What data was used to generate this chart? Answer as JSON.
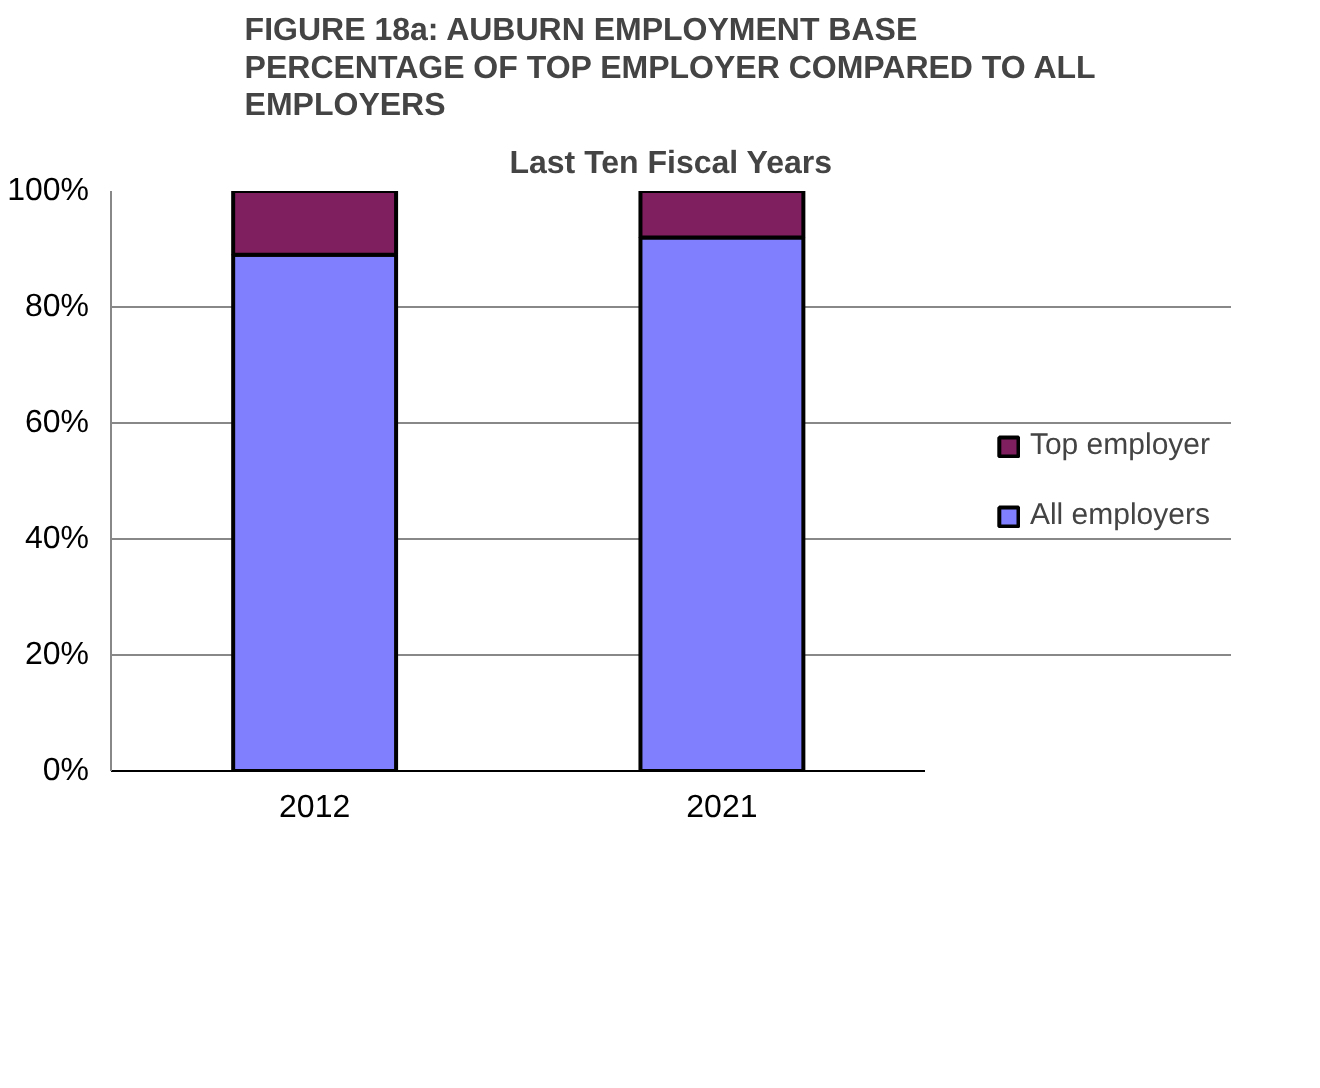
{
  "chart_data": {
    "type": "bar",
    "stacked": true,
    "title": "FIGURE 18a: AUBURN EMPLOYMENT BASE\nPERCENTAGE OF TOP EMPLOYER COMPARED TO ALL\nEMPLOYERS",
    "subtitle": "Last Ten Fiscal Years",
    "categories": [
      "2012",
      "2021"
    ],
    "series": [
      {
        "name": "All employers",
        "color": "#8080ff",
        "values": [
          89,
          92
        ]
      },
      {
        "name": "Top employer",
        "color": "#7f1f5f",
        "values": [
          11,
          8
        ]
      }
    ],
    "ylim": [
      0,
      100
    ],
    "yticks": [
      {
        "value": 0,
        "label": "0%"
      },
      {
        "value": 20,
        "label": "20%"
      },
      {
        "value": 40,
        "label": "40%"
      },
      {
        "value": 60,
        "label": "60%"
      },
      {
        "value": 80,
        "label": "80%"
      },
      {
        "value": 100,
        "label": "100%"
      }
    ],
    "grid": "y",
    "legend": "right"
  }
}
